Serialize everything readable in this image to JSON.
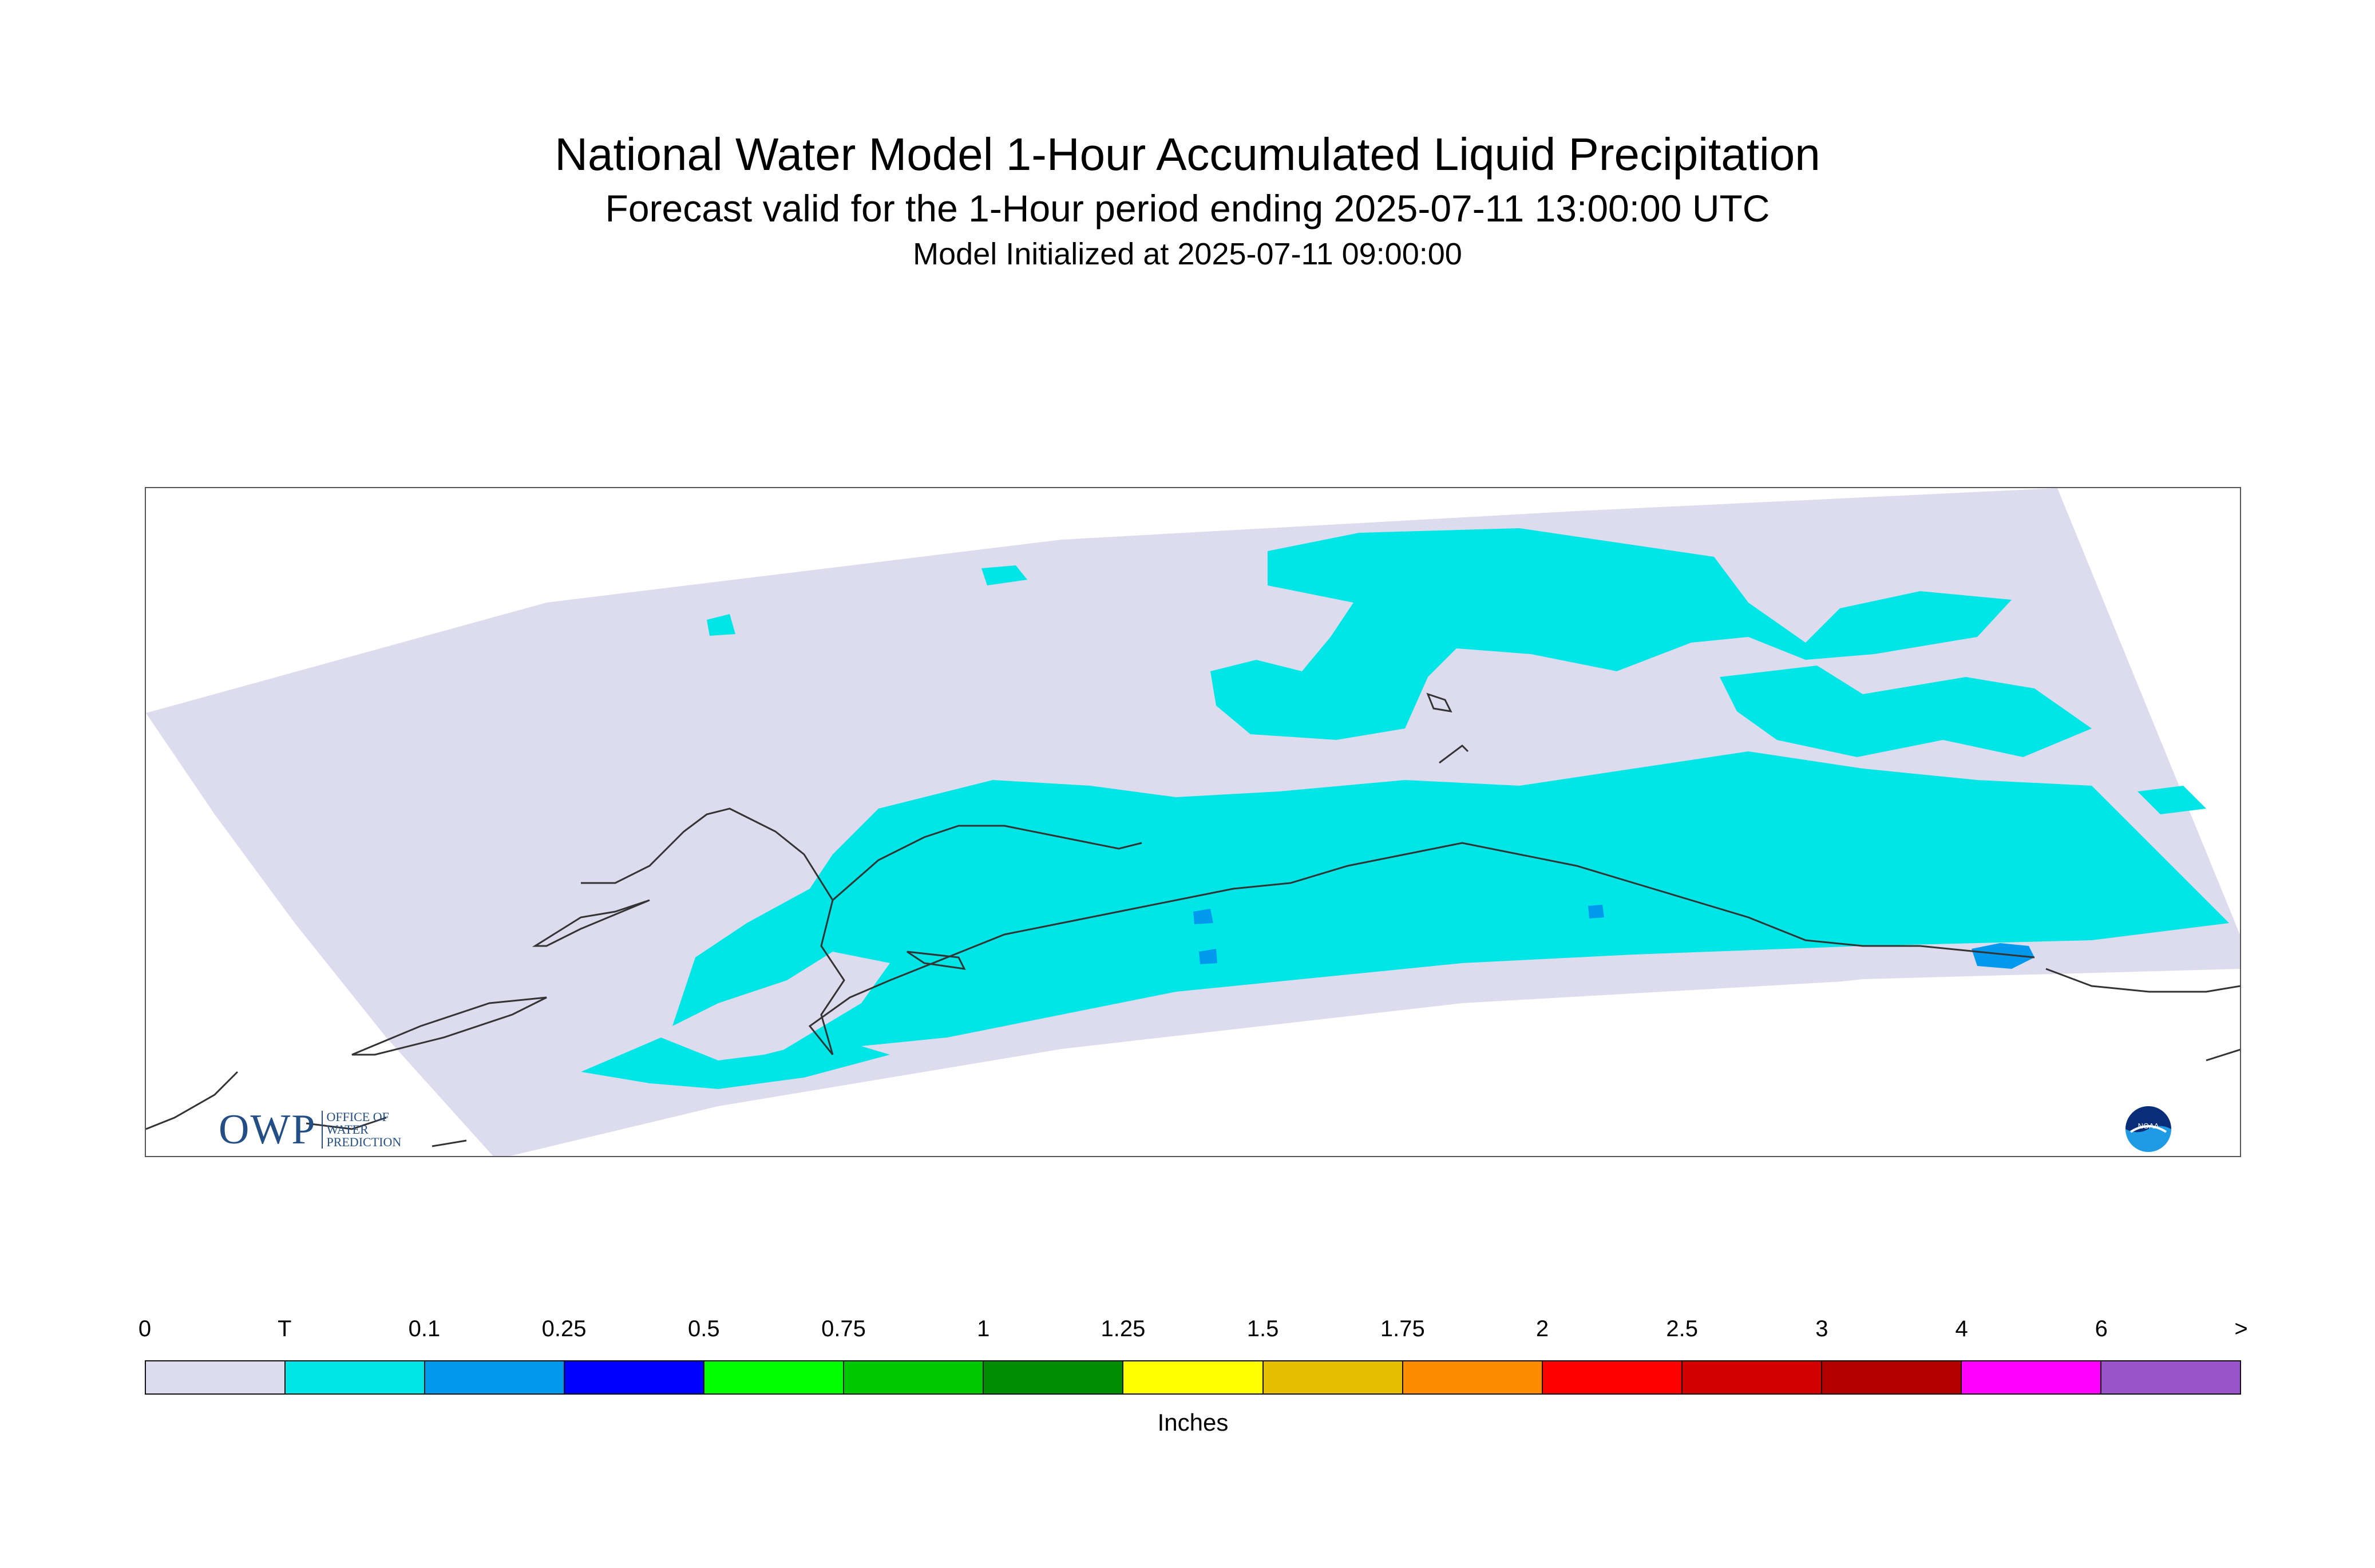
{
  "title": "National Water Model 1-Hour Accumulated Liquid Precipitation",
  "subtitle": "Forecast valid for the 1-Hour period ending 2025-07-11 13:00:00 UTC",
  "init_line": "Model Initialized at 2025-07-11 09:00:00",
  "map": {
    "domain_fill": "#dcdcee",
    "trace_color": "#00e5e5",
    "light_color": "#0099ee",
    "coastline_color": "#333333"
  },
  "logos": {
    "owp_mark": "OWP",
    "owp_text": [
      "Office of",
      "Water",
      "Prediction"
    ],
    "noaa_text": "NOAA"
  },
  "colorbar": {
    "labels": [
      "0",
      "T",
      "0.1",
      "0.25",
      "0.5",
      "0.75",
      "1",
      "1.25",
      "1.5",
      "1.75",
      "2",
      "2.5",
      "3",
      "4",
      "6",
      ">"
    ],
    "colors": [
      "#dcdcee",
      "#00e5e5",
      "#0099ee",
      "#0000ff",
      "#00ff00",
      "#00c800",
      "#008c00",
      "#ffff00",
      "#e6be00",
      "#ff8c00",
      "#ff0000",
      "#d20000",
      "#b40000",
      "#ff00ff",
      "#9955c9"
    ],
    "units": "Inches"
  }
}
